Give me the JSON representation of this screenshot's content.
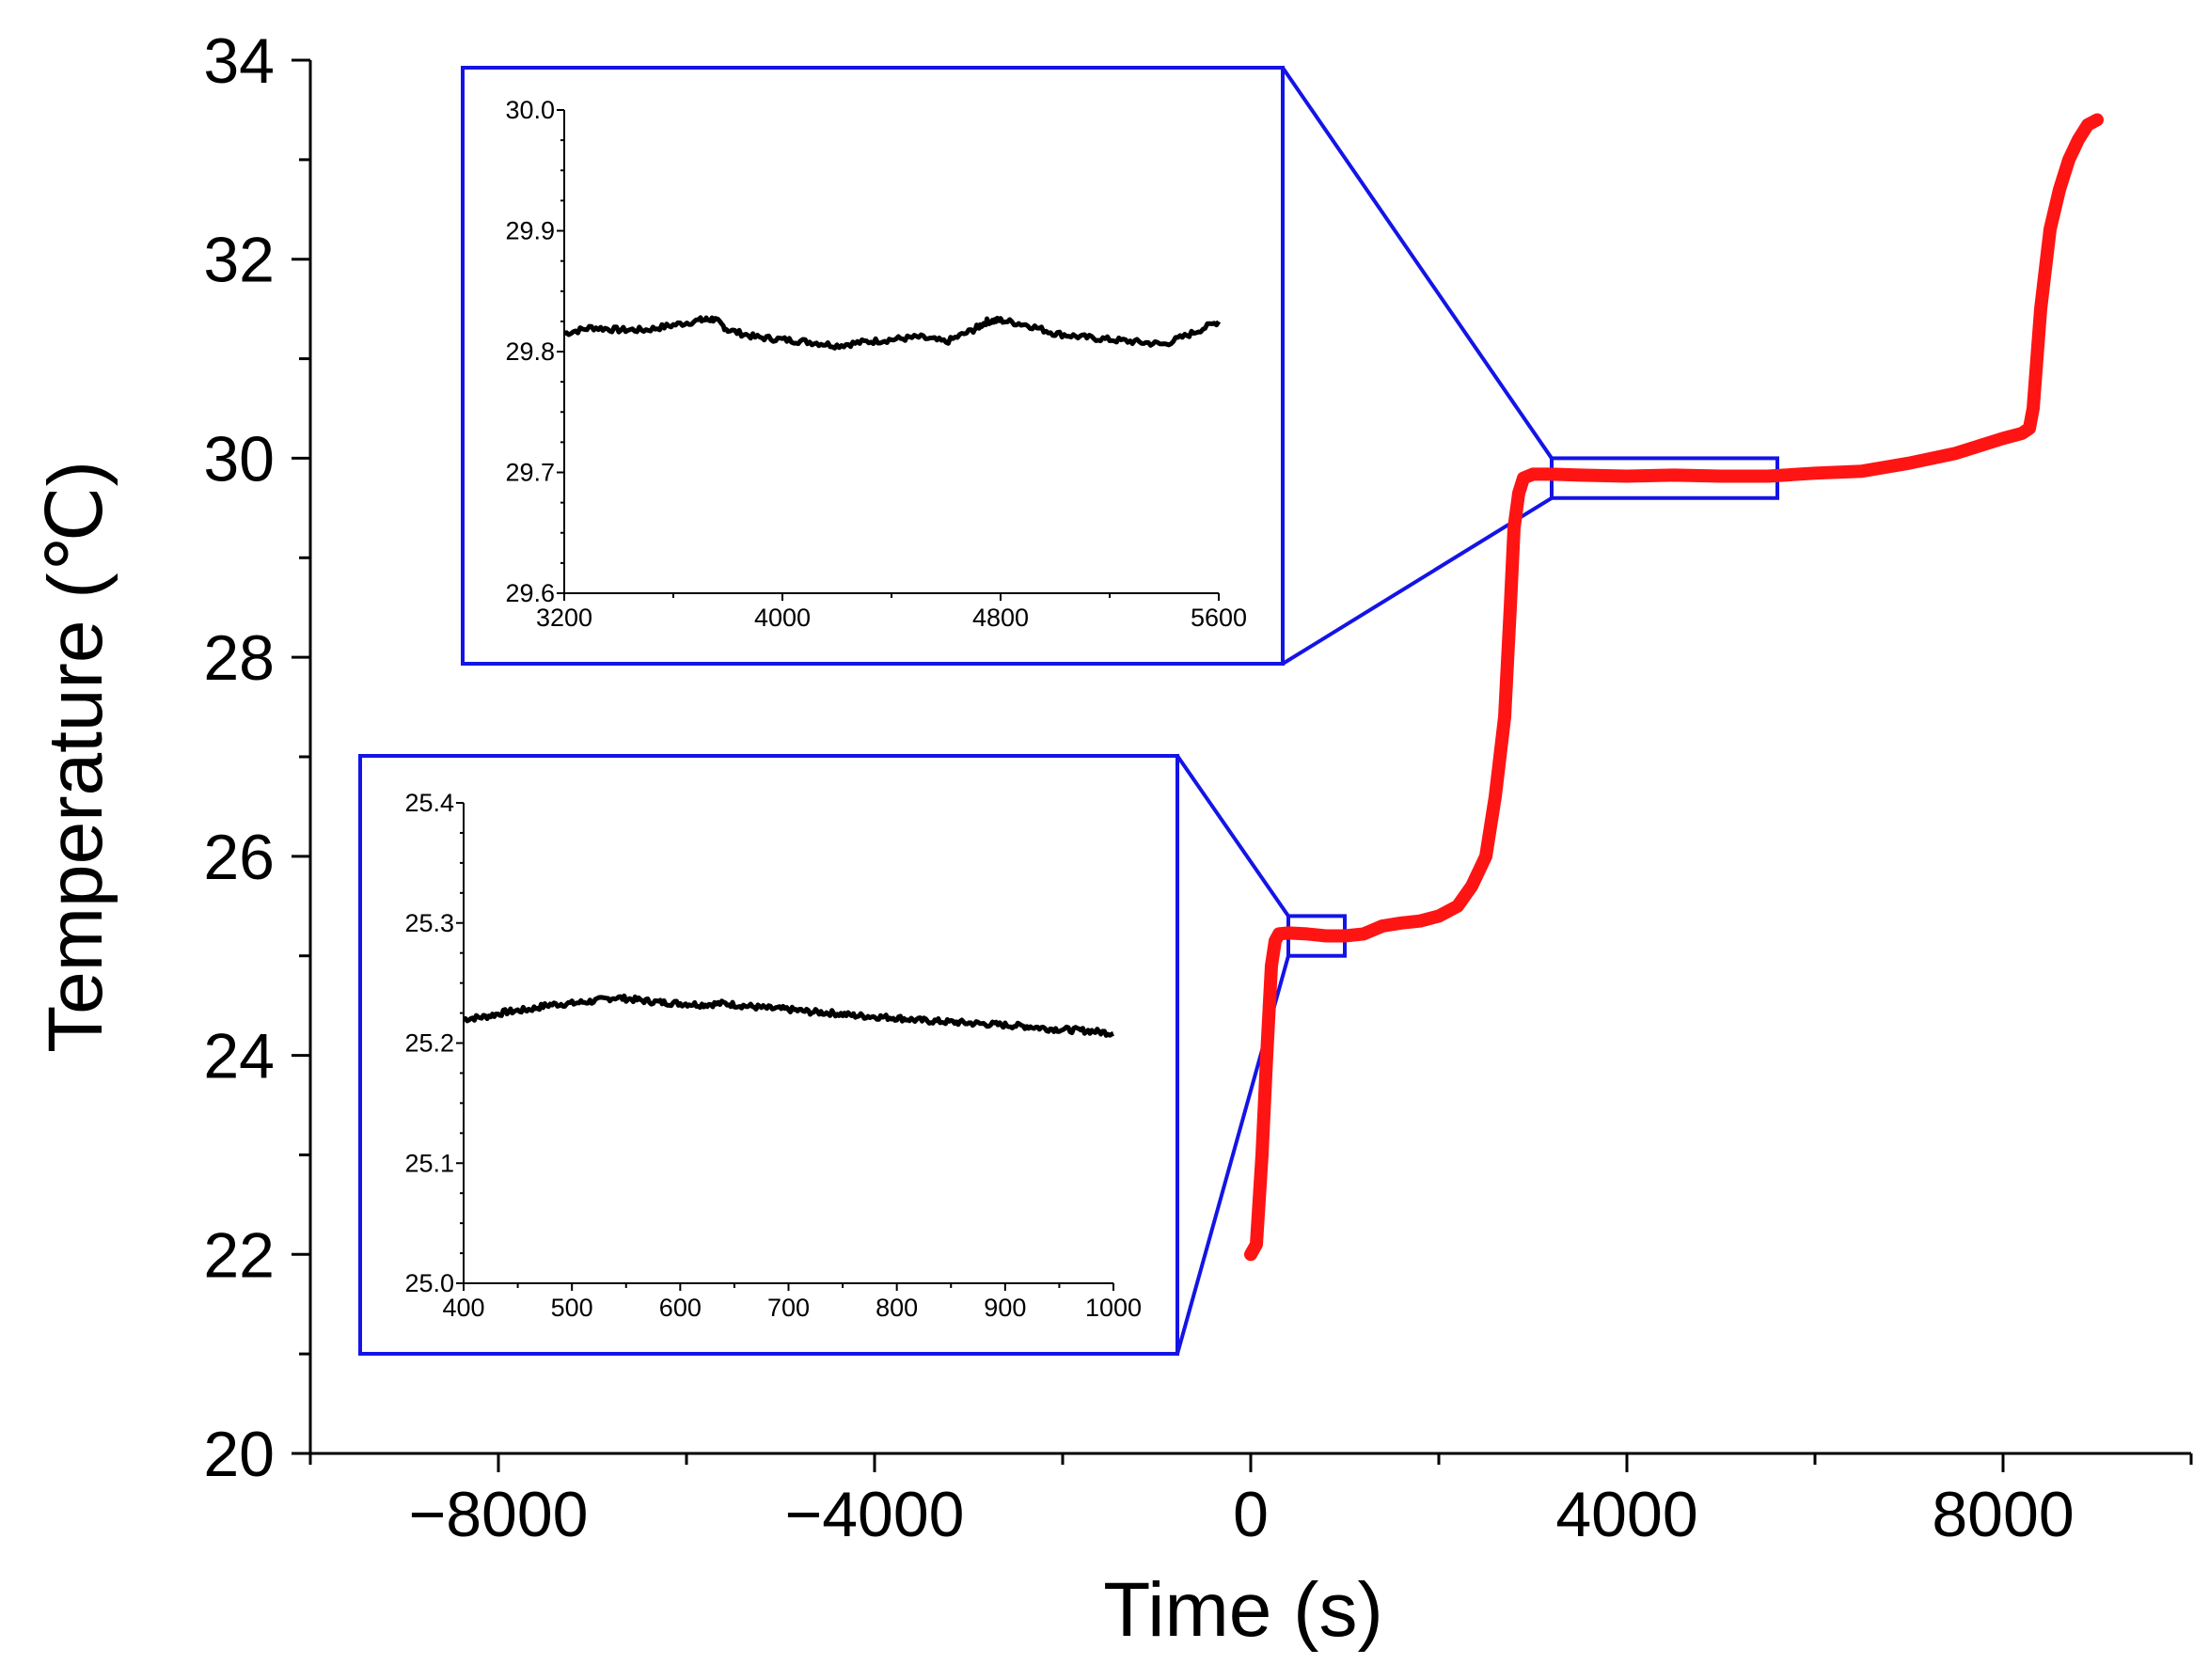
{
  "chart_data": [
    {
      "name": "main",
      "type": "line",
      "title": "",
      "xlabel": "Time (s)",
      "ylabel": "Temperature (℃)",
      "xlim": [
        -10000,
        10000
      ],
      "ylim": [
        20,
        34
      ],
      "xticks": [
        -8000,
        -4000,
        0,
        4000,
        8000
      ],
      "xtick_labels": [
        "−8000",
        "−4000",
        "0",
        "4000",
        "8000"
      ],
      "yticks": [
        20,
        22,
        24,
        26,
        28,
        30,
        32,
        34
      ],
      "ytick_labels": [
        "20",
        "22",
        "24",
        "26",
        "28",
        "30",
        "32",
        "34"
      ],
      "series": [
        {
          "name": "temperature",
          "color": "#ff1414",
          "x": [
            0,
            60,
            120,
            170,
            220,
            260,
            300,
            400,
            600,
            800,
            1000,
            1200,
            1400,
            1600,
            1800,
            2000,
            2200,
            2350,
            2500,
            2600,
            2700,
            2760,
            2800,
            2850,
            2900,
            3000,
            3200,
            3500,
            4000,
            4500,
            5000,
            5500,
            6000,
            6500,
            7000,
            7500,
            8000,
            8200,
            8280,
            8320,
            8360,
            8400,
            8450,
            8500,
            8600,
            8700,
            8800,
            8900,
            9000
          ],
          "y": [
            22.0,
            22.1,
            23.0,
            24.0,
            24.9,
            25.15,
            25.22,
            25.23,
            25.22,
            25.2,
            25.2,
            25.22,
            25.3,
            25.33,
            25.35,
            25.4,
            25.5,
            25.7,
            26.0,
            26.6,
            27.4,
            28.5,
            29.3,
            29.65,
            29.8,
            29.84,
            29.84,
            29.83,
            29.82,
            29.83,
            29.82,
            29.82,
            29.85,
            29.87,
            29.95,
            30.05,
            30.2,
            30.25,
            30.3,
            30.5,
            31.0,
            31.5,
            31.9,
            32.3,
            32.7,
            33.0,
            33.2,
            33.35,
            33.4
          ]
        }
      ],
      "zoom_regions": [
        {
          "x": [
            400,
            1000
          ],
          "y": [
            25.0,
            25.4
          ]
        },
        {
          "x": [
            3200,
            5600
          ],
          "y": [
            29.6,
            30.0
          ]
        }
      ]
    },
    {
      "name": "inset-upper",
      "type": "line",
      "xlim": [
        3200,
        5600
      ],
      "ylim": [
        29.6,
        30.0
      ],
      "xticks": [
        3200,
        4000,
        4800,
        5600
      ],
      "xtick_labels": [
        "3200",
        "4000",
        "4800",
        "5600"
      ],
      "yticks": [
        29.6,
        29.7,
        29.8,
        29.9,
        30.0
      ],
      "ytick_labels": [
        "29.6",
        "29.7",
        "29.8",
        "29.9",
        "30.0"
      ],
      "series": [
        {
          "name": "temperature",
          "color": "#000000",
          "x": [
            3200,
            3300,
            3400,
            3500,
            3600,
            3700,
            3750,
            3800,
            3900,
            4000,
            4100,
            4200,
            4300,
            4400,
            4500,
            4600,
            4700,
            4750,
            4800,
            4900,
            5000,
            5100,
            5200,
            5300,
            5400,
            5500,
            5600
          ],
          "y": [
            29.815,
            29.82,
            29.818,
            29.818,
            29.822,
            29.826,
            29.827,
            29.818,
            29.812,
            29.81,
            29.808,
            29.805,
            29.808,
            29.81,
            29.812,
            29.808,
            29.818,
            29.825,
            29.826,
            29.822,
            29.815,
            29.812,
            29.81,
            29.808,
            29.806,
            29.815,
            29.825
          ]
        }
      ]
    },
    {
      "name": "inset-lower",
      "type": "line",
      "xlim": [
        400,
        1000
      ],
      "ylim": [
        25.0,
        25.4
      ],
      "xticks": [
        400,
        500,
        600,
        700,
        800,
        900,
        1000
      ],
      "xtick_labels": [
        "400",
        "500",
        "600",
        "700",
        "800",
        "900",
        "1000"
      ],
      "yticks": [
        25.0,
        25.1,
        25.2,
        25.3,
        25.4
      ],
      "ytick_labels": [
        "25.0",
        "25.1",
        "25.2",
        "25.3",
        "25.4"
      ],
      "series": [
        {
          "name": "temperature",
          "color": "#000000",
          "x": [
            400,
            420,
            440,
            460,
            480,
            500,
            520,
            540,
            560,
            580,
            600,
            620,
            640,
            660,
            680,
            700,
            720,
            740,
            760,
            780,
            800,
            820,
            840,
            860,
            880,
            900,
            920,
            940,
            960,
            980,
            1000
          ],
          "y": [
            25.22,
            25.222,
            25.226,
            25.228,
            25.232,
            25.233,
            25.235,
            25.238,
            25.236,
            25.234,
            25.233,
            25.232,
            25.233,
            25.231,
            25.229,
            25.228,
            25.226,
            25.225,
            25.223,
            25.222,
            25.221,
            25.219,
            25.218,
            25.217,
            25.216,
            25.215,
            25.214,
            25.212,
            25.211,
            25.21,
            25.208
          ]
        }
      ]
    }
  ]
}
